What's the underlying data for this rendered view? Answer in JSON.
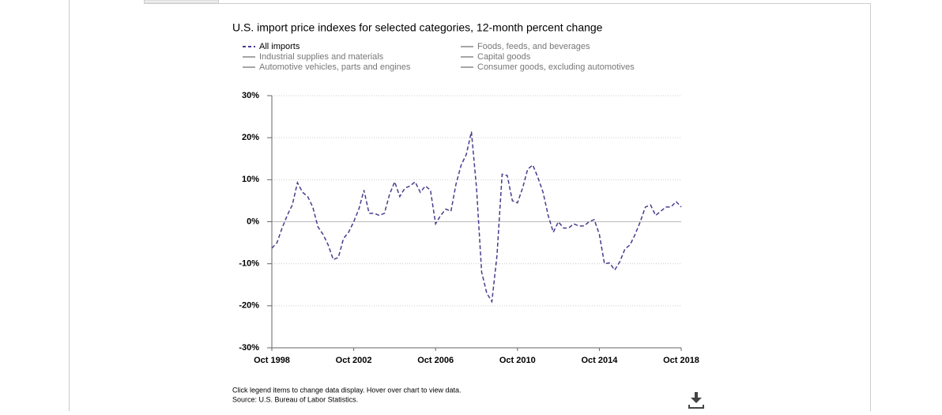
{
  "chart_data": {
    "type": "line",
    "title": "U.S. import price indexes for selected categories, 12-month percent change",
    "x": [
      "1998-10",
      "1999-01",
      "1999-04",
      "1999-07",
      "1999-10",
      "2000-01",
      "2000-04",
      "2000-07",
      "2000-10",
      "2001-01",
      "2001-04",
      "2001-07",
      "2001-10",
      "2002-01",
      "2002-04",
      "2002-07",
      "2002-10",
      "2003-01",
      "2003-04",
      "2003-07",
      "2003-10",
      "2004-01",
      "2004-04",
      "2004-07",
      "2004-10",
      "2005-01",
      "2005-04",
      "2005-07",
      "2005-10",
      "2006-01",
      "2006-04",
      "2006-07",
      "2006-10",
      "2007-01",
      "2007-04",
      "2007-07",
      "2007-10",
      "2008-01",
      "2008-04",
      "2008-07",
      "2008-10",
      "2009-01",
      "2009-04",
      "2009-07",
      "2009-10",
      "2010-01",
      "2010-04",
      "2010-07",
      "2010-10",
      "2011-01",
      "2011-04",
      "2011-07",
      "2011-10",
      "2012-01",
      "2012-04",
      "2012-07",
      "2012-10",
      "2013-01",
      "2013-04",
      "2013-07",
      "2013-10",
      "2014-01",
      "2014-04",
      "2014-07",
      "2014-10",
      "2015-01",
      "2015-04",
      "2015-07",
      "2015-10",
      "2016-01",
      "2016-04",
      "2016-07",
      "2016-10",
      "2017-01",
      "2017-04",
      "2017-07",
      "2017-10",
      "2018-01",
      "2018-04",
      "2018-07",
      "2018-10"
    ],
    "series": [
      {
        "name": "All imports",
        "color": "#4b3a8c",
        "dashed": true,
        "values": [
          -6.3,
          -5,
          -1.5,
          1.5,
          4,
          9.3,
          7,
          6,
          3.5,
          -1.2,
          -3,
          -5.5,
          -9,
          -8.5,
          -4,
          -2.5,
          0,
          3,
          7.5,
          2,
          2,
          1.5,
          2,
          6.5,
          9.5,
          6,
          8,
          8.5,
          9.5,
          7,
          8.5,
          7.5,
          -0.5,
          1.5,
          3,
          2.5,
          9,
          13.5,
          16,
          21.4,
          8,
          -12,
          -17,
          -19,
          -8,
          11.3,
          11,
          5,
          4.5,
          8,
          12.5,
          13.5,
          10.5,
          7,
          1.5,
          -2.5,
          0,
          -1.5,
          -1.5,
          -0.5,
          -1,
          -1,
          0,
          0.5,
          -3,
          -10,
          -9.8,
          -11.5,
          -9.5,
          -6.5,
          -5.5,
          -3,
          0,
          3.5,
          4,
          1.5,
          2.5,
          3.5,
          3.5,
          4.8,
          3.5
        ]
      },
      {
        "name": "Foods, feeds, and beverages",
        "color": "#888888",
        "hidden": true
      },
      {
        "name": "Industrial supplies and materials",
        "color": "#888888",
        "hidden": true
      },
      {
        "name": "Capital goods",
        "color": "#888888",
        "hidden": true
      },
      {
        "name": "Automotive vehicles, parts and engines",
        "color": "#888888",
        "hidden": true
      },
      {
        "name": "Consumer goods, excluding automotives",
        "color": "#888888",
        "hidden": true
      }
    ],
    "xlim": [
      "1998-10",
      "2018-10"
    ],
    "xticks": [
      {
        "value": "1998-10",
        "label": "Oct 1998"
      },
      {
        "value": "2002-10",
        "label": "Oct 2002"
      },
      {
        "value": "2006-10",
        "label": "Oct 2006"
      },
      {
        "value": "2010-10",
        "label": "Oct 2010"
      },
      {
        "value": "2014-10",
        "label": "Oct 2014"
      },
      {
        "value": "2018-10",
        "label": "Oct 2018"
      }
    ],
    "ylim": [
      -30,
      30
    ],
    "yticks": [
      {
        "value": -30,
        "label": "-30%"
      },
      {
        "value": -20,
        "label": "-20%"
      },
      {
        "value": -10,
        "label": "-10%"
      },
      {
        "value": 0,
        "label": "0%"
      },
      {
        "value": 10,
        "label": "10%"
      },
      {
        "value": 20,
        "label": "20%"
      },
      {
        "value": 30,
        "label": "30%"
      }
    ],
    "grid": true,
    "note": "Click legend items to change data display. Hover over chart to view data.",
    "source": "Source: U.S. Bureau of Labor Statistics."
  }
}
